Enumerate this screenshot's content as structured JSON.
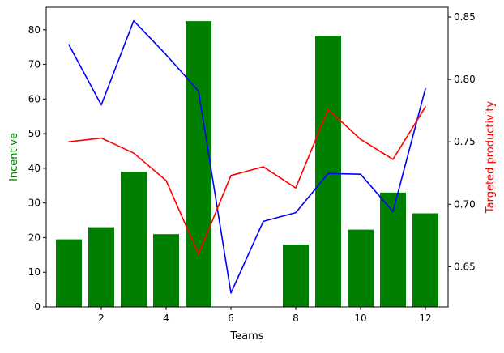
{
  "chart_data": {
    "type": "bar",
    "xlabel": "Teams",
    "ylabel_left": "Incentive",
    "ylabel_right": "Targeted productivity",
    "xlim": [
      0.3,
      12.7
    ],
    "ylim_left": [
      0,
      86.5
    ],
    "ylim_right": [
      0.6178,
      0.8578
    ],
    "x_ticks": [
      2,
      4,
      6,
      8,
      10,
      12
    ],
    "y_left_ticks": [
      0,
      10,
      20,
      30,
      40,
      50,
      60,
      70,
      80
    ],
    "y_right_ticks": [
      0.65,
      0.7,
      0.75,
      0.8,
      0.85
    ],
    "colors": {
      "bars": "#008000",
      "line_blue": "#0000ff",
      "line_red": "#ff0000",
      "left_label": "#008000",
      "right_label": "#ff0000"
    },
    "x": [
      1,
      2,
      3,
      4,
      5,
      6,
      7,
      8,
      9,
      10,
      11,
      12
    ],
    "bar_values": [
      19.5,
      23,
      39,
      21,
      82.5,
      0,
      0,
      18,
      78.3,
      22.3,
      33,
      27
    ],
    "series": [
      {
        "color": "#0000ff",
        "axis": "left",
        "values": [
          75.7,
          58.3,
          82.6,
          72.8,
          62.3,
          4.0,
          24.7,
          27.2,
          38.5,
          38.3,
          27.5,
          63
        ]
      },
      {
        "color": "#ff0000",
        "axis": "right",
        "values": [
          0.75,
          0.753,
          0.741,
          0.719,
          0.66,
          0.723,
          0.73,
          0.713,
          0.776,
          0.752,
          0.736,
          0.778
        ]
      }
    ]
  }
}
